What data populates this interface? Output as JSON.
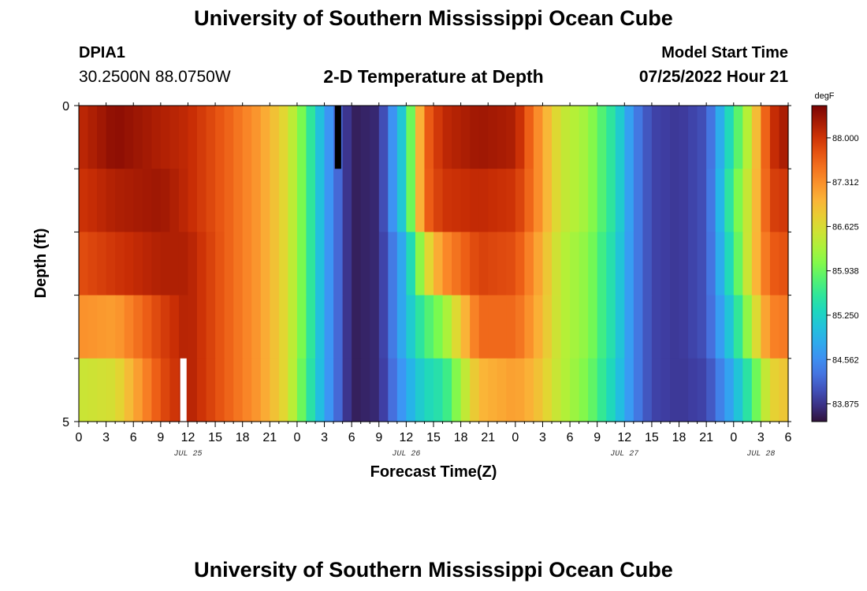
{
  "header": {
    "title": "University of Southern Mississippi Ocean Cube",
    "station_id": "DPIA1",
    "station_coords": "30.2500N  88.0750W",
    "subtitle": "2-D Temperature at Depth",
    "start_label": "Model Start Time",
    "start_value": "07/25/2022 Hour 21"
  },
  "footer": {
    "title": "University of Southern Mississippi Ocean Cube"
  },
  "chart_data": {
    "type": "heatmap",
    "title": "2-D Temperature at Depth",
    "xlabel": "Forecast Time(Z)",
    "ylabel": "Depth (ft)",
    "ylim": [
      0,
      5
    ],
    "y_ticks": [
      "0",
      "5"
    ],
    "x_ticks": [
      "0",
      "3",
      "6",
      "9",
      "12",
      "15",
      "18",
      "21",
      "0",
      "3",
      "6",
      "9",
      "12",
      "15",
      "18",
      "21",
      "0",
      "3",
      "6",
      "9",
      "12",
      "15",
      "18",
      "21",
      "0",
      "3",
      "6"
    ],
    "day_labels": [
      {
        "label": "JUL 25",
        "hour_index": 12
      },
      {
        "label": "JUL 26",
        "hour_index": 36
      },
      {
        "label": "JUL 27",
        "hour_index": 60
      },
      {
        "label": "JUL 28",
        "hour_index": 75
      }
    ],
    "hours_total": 78,
    "depth_layers": 5,
    "colorbar": {
      "unit": "degF",
      "min": 83.6,
      "max": 88.5,
      "ticks": [
        "88.000",
        "87.312",
        "86.625",
        "85.938",
        "85.250",
        "84.562",
        "83.875"
      ],
      "tick_values": [
        88.0,
        87.312,
        86.625,
        85.938,
        85.25,
        84.562,
        83.875
      ]
    },
    "anchor_hours": [
      0,
      4,
      9,
      12,
      16,
      20,
      23,
      25,
      27,
      30,
      33,
      36,
      38,
      40,
      44,
      48,
      50,
      53,
      56,
      59,
      61,
      63,
      66,
      69,
      72,
      74,
      76,
      78
    ],
    "series": [
      {
        "name": "0 ft",
        "values": [
          88.1,
          88.4,
          88.2,
          88.1,
          87.7,
          87.2,
          86.6,
          85.8,
          84.8,
          83.7,
          83.8,
          85.4,
          87.6,
          88.1,
          88.3,
          88.2,
          87.5,
          86.5,
          86.2,
          85.4,
          84.5,
          84.0,
          83.9,
          84.1,
          85.6,
          86.6,
          88.0,
          88.3
        ]
      },
      {
        "name": "1 ft",
        "values": [
          88.0,
          88.2,
          88.3,
          88.1,
          87.7,
          87.2,
          86.6,
          85.8,
          84.8,
          83.7,
          83.8,
          85.4,
          87.6,
          88.0,
          88.1,
          88.0,
          87.5,
          86.5,
          86.2,
          85.4,
          84.5,
          84.0,
          83.9,
          84.1,
          85.8,
          86.7,
          87.9,
          88.0
        ]
      },
      {
        "name": "2 ft",
        "values": [
          87.8,
          88.0,
          88.2,
          88.2,
          87.7,
          87.2,
          86.6,
          85.8,
          84.8,
          83.7,
          83.8,
          85.0,
          86.5,
          87.3,
          87.9,
          87.8,
          87.3,
          86.4,
          86.1,
          85.3,
          84.5,
          84.0,
          83.9,
          84.1,
          85.6,
          86.8,
          87.7,
          87.8
        ]
      },
      {
        "name": "3 ft",
        "values": [
          87.3,
          87.2,
          87.9,
          88.2,
          87.7,
          87.2,
          86.6,
          85.8,
          84.8,
          83.7,
          83.8,
          85.0,
          85.7,
          86.1,
          87.6,
          87.6,
          87.2,
          86.4,
          86.1,
          85.3,
          84.5,
          84.0,
          83.9,
          84.1,
          85.3,
          86.4,
          87.4,
          87.5
        ]
      },
      {
        "name": "4 ft",
        "values": [
          86.5,
          86.6,
          87.8,
          88.2,
          87.7,
          87.2,
          86.6,
          85.7,
          84.8,
          83.7,
          83.8,
          84.8,
          85.3,
          85.5,
          87.0,
          87.2,
          87.0,
          86.4,
          86.0,
          85.2,
          84.5,
          84.0,
          83.9,
          84.0,
          84.9,
          85.7,
          86.7,
          86.9
        ]
      }
    ],
    "gaps": [
      {
        "hour": 28,
        "layer": 0,
        "color": "#000000"
      },
      {
        "hour": 11,
        "layer": 4,
        "color": "#ffffff"
      }
    ]
  }
}
